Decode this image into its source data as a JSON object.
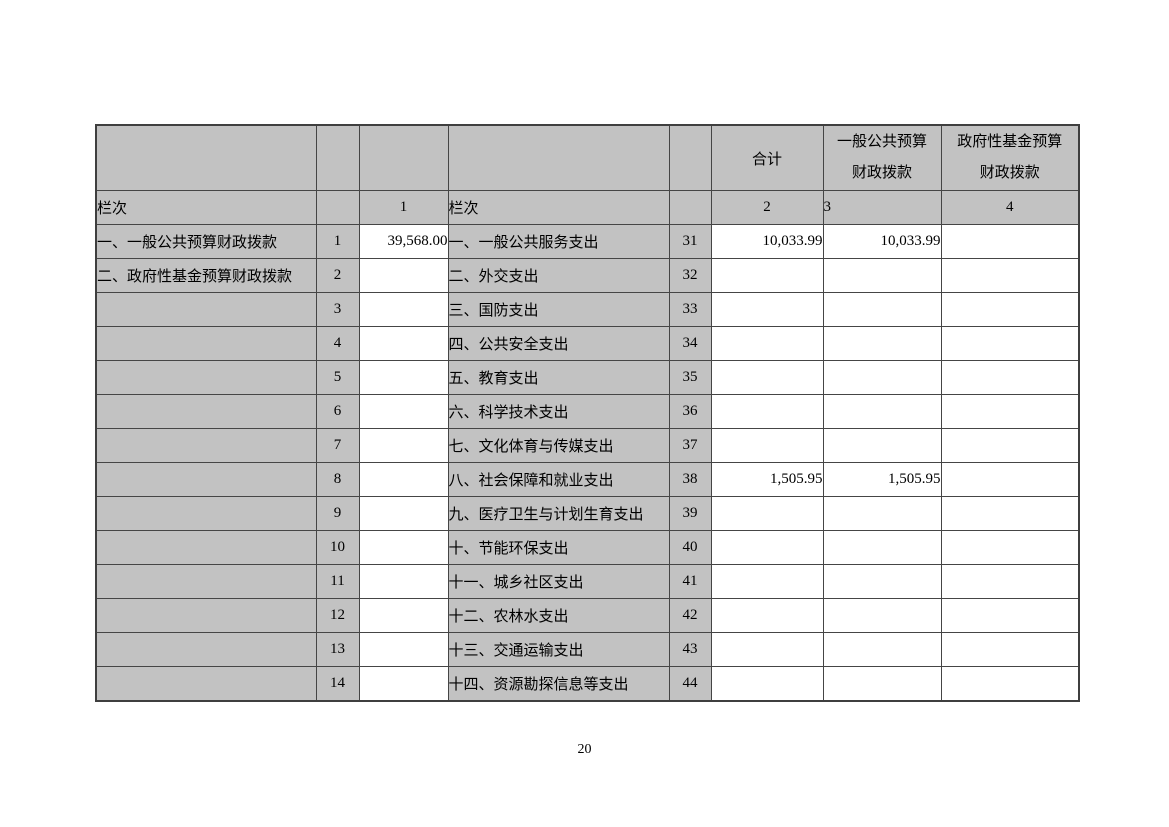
{
  "page": {
    "number": "20"
  },
  "colors": {
    "cell_gray": "#c2c2c2",
    "cell_white": "#ffffff",
    "grid_border": "#454545",
    "text": "#000000"
  },
  "table": {
    "header": {
      "col_total": "合计",
      "col_general_line1": "一般公共预算",
      "col_general_line2": "财政拨款",
      "col_govfund_line1": "政府性基金预算",
      "col_govfund_line2": "财政拨款"
    },
    "lanci_row": {
      "left_label": "栏次",
      "col1": "1",
      "right_label": "栏次",
      "col2": "2",
      "col3": "3",
      "col4": "4"
    },
    "rows": [
      {
        "left_label": "一、一般公共预算财政拨款",
        "left_num": "1",
        "col1": "39,568.00",
        "right_label": "一、一般公共服务支出",
        "right_num": "31",
        "col2": "10,033.99",
        "col3": "10,033.99",
        "col4": ""
      },
      {
        "left_label": "二、政府性基金预算财政拨款",
        "left_num": "2",
        "col1": "",
        "right_label": "二、外交支出",
        "right_num": "32",
        "col2": "",
        "col3": "",
        "col4": ""
      },
      {
        "left_label": "",
        "left_num": "3",
        "col1": "",
        "right_label": "三、国防支出",
        "right_num": "33",
        "col2": "",
        "col3": "",
        "col4": ""
      },
      {
        "left_label": "",
        "left_num": "4",
        "col1": "",
        "right_label": "四、公共安全支出",
        "right_num": "34",
        "col2": "",
        "col3": "",
        "col4": ""
      },
      {
        "left_label": "",
        "left_num": "5",
        "col1": "",
        "right_label": "五、教育支出",
        "right_num": "35",
        "col2": "",
        "col3": "",
        "col4": ""
      },
      {
        "left_label": "",
        "left_num": "6",
        "col1": "",
        "right_label": "六、科学技术支出",
        "right_num": "36",
        "col2": "",
        "col3": "",
        "col4": ""
      },
      {
        "left_label": "",
        "left_num": "7",
        "col1": "",
        "right_label": "七、文化体育与传媒支出",
        "right_num": "37",
        "col2": "",
        "col3": "",
        "col4": ""
      },
      {
        "left_label": "",
        "left_num": "8",
        "col1": "",
        "right_label": "八、社会保障和就业支出",
        "right_num": "38",
        "col2": "1,505.95",
        "col3": "1,505.95",
        "col4": ""
      },
      {
        "left_label": "",
        "left_num": "9",
        "col1": "",
        "right_label": "九、医疗卫生与计划生育支出",
        "right_num": "39",
        "col2": "",
        "col3": "",
        "col4": ""
      },
      {
        "left_label": "",
        "left_num": "10",
        "col1": "",
        "right_label": "十、节能环保支出",
        "right_num": "40",
        "col2": "",
        "col3": "",
        "col4": ""
      },
      {
        "left_label": "",
        "left_num": "11",
        "col1": "",
        "right_label": "十一、城乡社区支出",
        "right_num": "41",
        "col2": "",
        "col3": "",
        "col4": ""
      },
      {
        "left_label": "",
        "left_num": "12",
        "col1": "",
        "right_label": "十二、农林水支出",
        "right_num": "42",
        "col2": "",
        "col3": "",
        "col4": ""
      },
      {
        "left_label": "",
        "left_num": "13",
        "col1": "",
        "right_label": "十三、交通运输支出",
        "right_num": "43",
        "col2": "",
        "col3": "",
        "col4": ""
      },
      {
        "left_label": "",
        "left_num": "14",
        "col1": "",
        "right_label": "十四、资源勘探信息等支出",
        "right_num": "44",
        "col2": "",
        "col3": "",
        "col4": ""
      }
    ]
  }
}
